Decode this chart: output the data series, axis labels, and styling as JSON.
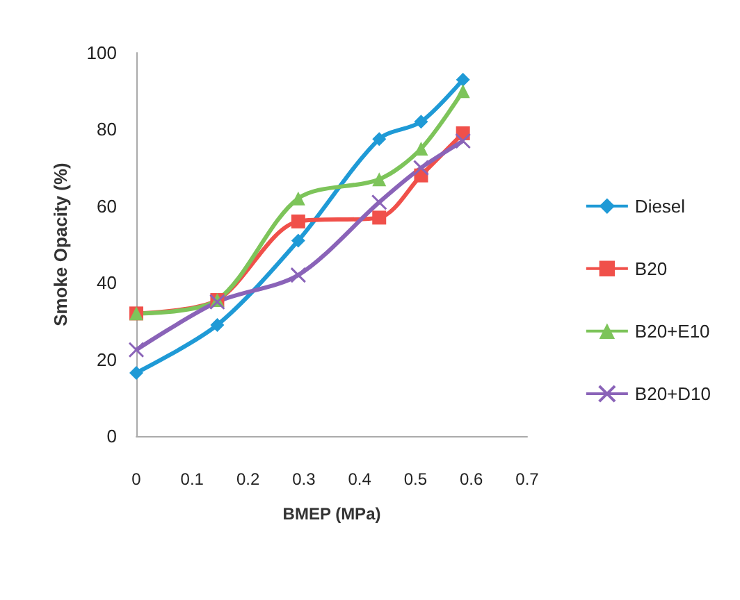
{
  "chart_data": {
    "type": "line",
    "xlabel": "BMEP (MPa)",
    "ylabel": "Smoke Opacity (%)",
    "xlim": [
      0,
      0.7
    ],
    "xticks": [
      0,
      0.1,
      0.2,
      0.3,
      0.4,
      0.5,
      0.6,
      0.7
    ],
    "ylim": [
      0,
      100
    ],
    "yticks": [
      0,
      20,
      40,
      60,
      80,
      100
    ],
    "grid": false,
    "legend": "right",
    "series": [
      {
        "name": "Diesel",
        "color": "#1f9ad6",
        "marker": "diamond",
        "x": [
          0,
          0.145,
          0.29,
          0.435,
          0.51,
          0.585
        ],
        "values": [
          16.5,
          29,
          51,
          77.5,
          82,
          93
        ]
      },
      {
        "name": "B20",
        "color": "#f0504a",
        "marker": "square",
        "x": [
          0,
          0.145,
          0.29,
          0.435,
          0.51,
          0.585
        ],
        "values": [
          32,
          35.5,
          56,
          57,
          68,
          79
        ]
      },
      {
        "name": "B20+E10",
        "color": "#7dc45a",
        "marker": "triangle",
        "x": [
          0,
          0.145,
          0.29,
          0.435,
          0.51,
          0.585
        ],
        "values": [
          32,
          35.5,
          62,
          67,
          75,
          90
        ]
      },
      {
        "name": "B20+D10",
        "color": "#8a63b8",
        "marker": "cross",
        "x": [
          0,
          0.145,
          0.29,
          0.435,
          0.51,
          0.585
        ],
        "values": [
          22.5,
          35,
          42,
          61,
          70,
          77
        ]
      }
    ]
  }
}
